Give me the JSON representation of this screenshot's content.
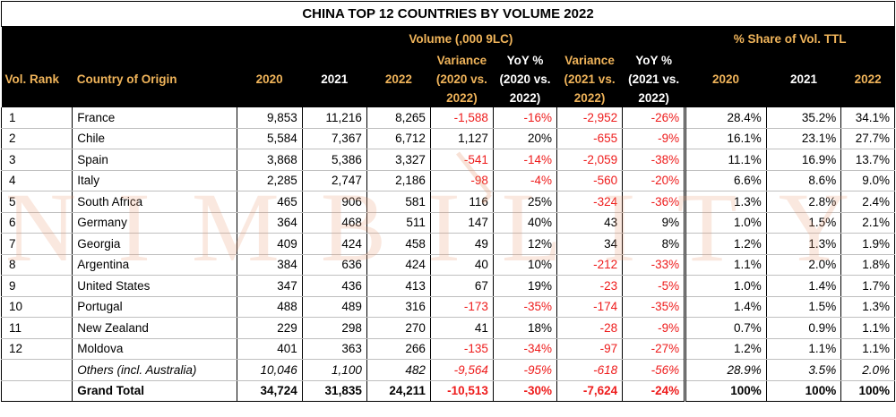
{
  "title": "CHINA TOP 12 COUNTRIES BY VOLUME 2022",
  "header": {
    "volume_group": "Volume (,000 9LC)",
    "share_group": "% Share of Vol. TTL",
    "rank": "Vol. Rank",
    "country": "Country of Origin",
    "y2020": "2020",
    "y2021": "2021",
    "y2022": "2022",
    "var1": [
      "Variance",
      "(2020 vs.",
      "2022)"
    ],
    "yoy1": [
      "YoY %",
      "(2020 vs.",
      "2022)"
    ],
    "var2": [
      "Variance",
      "(2021 vs.",
      "2022)"
    ],
    "yoy2": [
      "YoY %",
      "(2021 vs.",
      "2022)"
    ],
    "s2020": "2020",
    "s2021": "2021",
    "s2022": "2022"
  },
  "rows": [
    {
      "rank": "1",
      "country": "France",
      "v2020": "9,853",
      "v2021": "11,216",
      "v2022": "8,265",
      "var1": "-1,588",
      "yoy1": "-16%",
      "var2": "-2,952",
      "yoy2": "-26%",
      "s2020": "28.4%",
      "s2021": "35.2%",
      "s2022": "34.1%"
    },
    {
      "rank": "2",
      "country": "Chile",
      "v2020": "5,584",
      "v2021": "7,367",
      "v2022": "6,712",
      "var1": "1,127",
      "yoy1": "20%",
      "var2": "-655",
      "yoy2": "-9%",
      "s2020": "16.1%",
      "s2021": "23.1%",
      "s2022": "27.7%"
    },
    {
      "rank": "3",
      "country": "Spain",
      "v2020": "3,868",
      "v2021": "5,386",
      "v2022": "3,327",
      "var1": "-541",
      "yoy1": "-14%",
      "var2": "-2,059",
      "yoy2": "-38%",
      "s2020": "11.1%",
      "s2021": "16.9%",
      "s2022": "13.7%"
    },
    {
      "rank": "4",
      "country": "Italy",
      "v2020": "2,285",
      "v2021": "2,747",
      "v2022": "2,186",
      "var1": "-98",
      "yoy1": "-4%",
      "var2": "-560",
      "yoy2": "-20%",
      "s2020": "6.6%",
      "s2021": "8.6%",
      "s2022": "9.0%"
    },
    {
      "rank": "5",
      "country": "South Africa",
      "v2020": "465",
      "v2021": "906",
      "v2022": "581",
      "var1": "116",
      "yoy1": "25%",
      "var2": "-324",
      "yoy2": "-36%",
      "s2020": "1.3%",
      "s2021": "2.8%",
      "s2022": "2.4%"
    },
    {
      "rank": "6",
      "country": "Germany",
      "v2020": "364",
      "v2021": "468",
      "v2022": "511",
      "var1": "147",
      "yoy1": "40%",
      "var2": "43",
      "yoy2": "9%",
      "s2020": "1.0%",
      "s2021": "1.5%",
      "s2022": "2.1%"
    },
    {
      "rank": "7",
      "country": "Georgia",
      "v2020": "409",
      "v2021": "424",
      "v2022": "458",
      "var1": "49",
      "yoy1": "12%",
      "var2": "34",
      "yoy2": "8%",
      "s2020": "1.2%",
      "s2021": "1.3%",
      "s2022": "1.9%"
    },
    {
      "rank": "8",
      "country": "Argentina",
      "v2020": "384",
      "v2021": "636",
      "v2022": "424",
      "var1": "40",
      "yoy1": "10%",
      "var2": "-212",
      "yoy2": "-33%",
      "s2020": "1.1%",
      "s2021": "2.0%",
      "s2022": "1.8%"
    },
    {
      "rank": "9",
      "country": "United States",
      "v2020": "347",
      "v2021": "436",
      "v2022": "413",
      "var1": "67",
      "yoy1": "19%",
      "var2": "-23",
      "yoy2": "-5%",
      "s2020": "1.0%",
      "s2021": "1.4%",
      "s2022": "1.7%"
    },
    {
      "rank": "10",
      "country": "Portugal",
      "v2020": "488",
      "v2021": "489",
      "v2022": "316",
      "var1": "-173",
      "yoy1": "-35%",
      "var2": "-174",
      "yoy2": "-35%",
      "s2020": "1.4%",
      "s2021": "1.5%",
      "s2022": "1.3%"
    },
    {
      "rank": "11",
      "country": "New Zealand",
      "v2020": "229",
      "v2021": "298",
      "v2022": "270",
      "var1": "41",
      "yoy1": "18%",
      "var2": "-28",
      "yoy2": "-9%",
      "s2020": "0.7%",
      "s2021": "0.9%",
      "s2022": "1.1%"
    },
    {
      "rank": "12",
      "country": "Moldova",
      "v2020": "401",
      "v2021": "363",
      "v2022": "266",
      "var1": "-135",
      "yoy1": "-34%",
      "var2": "-97",
      "yoy2": "-27%",
      "s2020": "1.2%",
      "s2021": "1.1%",
      "s2022": "1.1%"
    }
  ],
  "others": {
    "rank": "",
    "country": "Others (incl. Australia)",
    "v2020": "10,046",
    "v2021": "1,100",
    "v2022": "482",
    "var1": "-9,564",
    "yoy1": "-95%",
    "var2": "-618",
    "yoy2": "-56%",
    "s2020": "28.9%",
    "s2021": "3.5%",
    "s2022": "2.0%"
  },
  "total": {
    "rank": "",
    "country": "Grand Total",
    "v2020": "34,724",
    "v2021": "31,835",
    "v2022": "24,211",
    "var1": "-10,513",
    "yoy1": "-30%",
    "var2": "-7,624",
    "yoy2": "-24%",
    "s2020": "100%",
    "s2021": "100%",
    "s2022": "100%"
  },
  "watermark": "NIMBILITY",
  "colors": {
    "header_bg": "#000000",
    "header_gold": "#f0b45a",
    "negative": "#ee1c1c",
    "watermark": "#e6966e"
  }
}
